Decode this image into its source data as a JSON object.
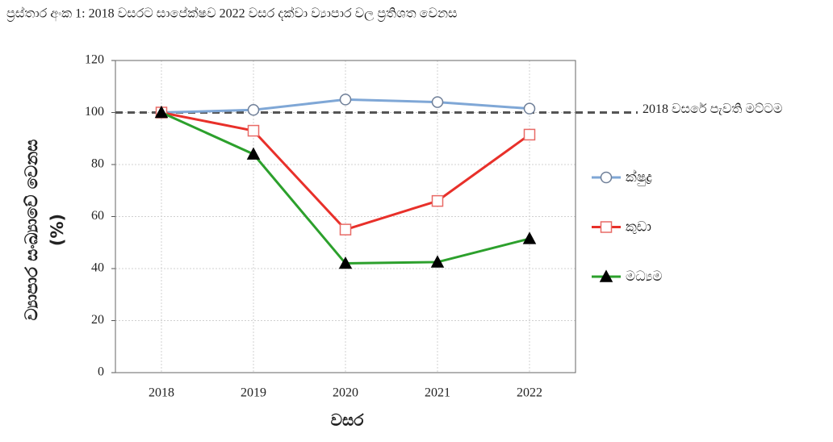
{
  "chart_data": {
    "type": "line",
    "title": "ප්‍රස්තාර අංක 1: 2018 වසරට සාපේක්ෂව 2022 වසර දක්වා ව්‍යාපාර වල ප්‍රතිශත වෙනස",
    "x_label": "වසර",
    "y_label": [
      "ව්‍යාපාර සංඛ්‍යාවේ වෙනස",
      "(%)"
    ],
    "categories": [
      "2018",
      "2019",
      "2020",
      "2021",
      "2022"
    ],
    "series": [
      {
        "name": "ක්ෂුද්‍ර",
        "color": "#7fa7d6",
        "marker": "circle",
        "marker_color": "#ffffff",
        "marker_edge": "#6f7f98",
        "values": [
          100,
          101,
          105,
          104,
          101.5
        ]
      },
      {
        "name": "කුඩා",
        "color": "#e8302a",
        "marker": "square",
        "marker_color": "#ffffff",
        "marker_edge": "#e86a66",
        "values": [
          100,
          93,
          55,
          66,
          91.5
        ]
      },
      {
        "name": "මධ්‍යම",
        "color": "#2ca02c",
        "marker": "triangle",
        "marker_color": "#000000",
        "marker_edge": "#000000",
        "values": [
          100,
          84,
          42,
          42.5,
          51.5
        ]
      }
    ],
    "reference_lines": [
      {
        "value": 100,
        "label": "2018 වසරේ පැවති මට්ටම",
        "color": "#555555"
      }
    ],
    "ylim": [
      0,
      120
    ],
    "yticks": [
      0,
      20,
      40,
      60,
      80,
      100,
      120
    ],
    "grid": true,
    "legend": "right"
  }
}
